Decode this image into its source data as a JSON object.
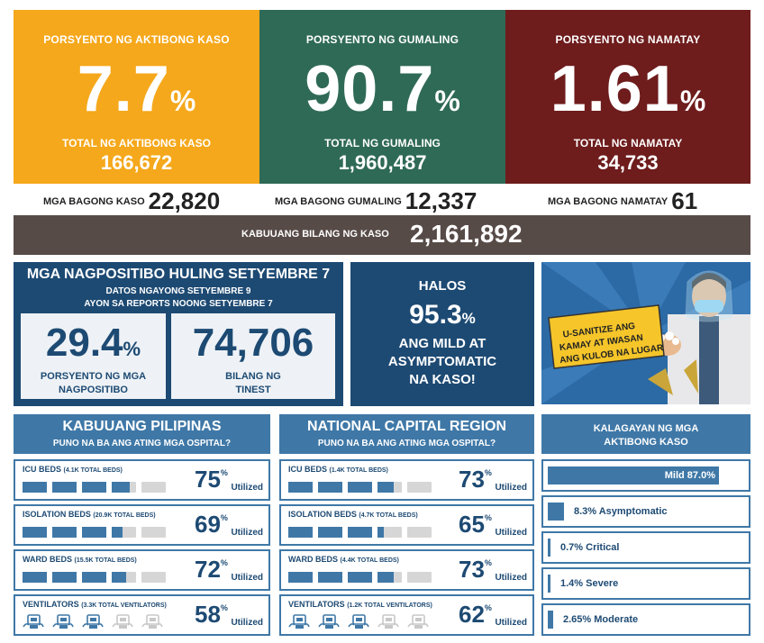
{
  "top_stats": [
    {
      "label": "PORSYENTO NG AKTIBONG KASO",
      "value": "7.7",
      "unit": "%",
      "sub_label": "TOTAL NG AKTIBONG KASO",
      "sub_value": "166,672",
      "color": "#f5a81b"
    },
    {
      "label": "PORSYENTO NG GUMALING",
      "value": "90.7",
      "unit": "%",
      "sub_label": "TOTAL NG GUMALING",
      "sub_value": "1,960,487",
      "color": "#2f6a56"
    },
    {
      "label": "PORSYENTO NG NAMATAY",
      "value": "1.61",
      "unit": "%",
      "sub_label": "TOTAL NG NAMATAY",
      "sub_value": "34,733",
      "color": "#6e1c1c"
    }
  ],
  "new_cases": [
    {
      "label": "MGA BAGONG KASO",
      "value": "22,820"
    },
    {
      "label": "MGA BAGONG GUMALING",
      "value": "12,337"
    },
    {
      "label": "MGA BAGONG NAMATAY",
      "value": "61"
    }
  ],
  "total": {
    "label": "KABUUANG BILANG NG KASO",
    "value": "2,161,892"
  },
  "positivity": {
    "title": "MGA NAGPOSITIBO HULING SETYEMBRE 7",
    "sub1": "DATOS NGAYONG SETYEMBRE 9",
    "sub2": "AYON SA REPORTS NOONG SETYEMBRE 7",
    "rate_value": "29.4",
    "rate_unit": "%",
    "rate_label1": "PORSYENTO NG MGA",
    "rate_label2": "NAGPOSITIBO",
    "tested_value": "74,706",
    "tested_label1": "BILANG NG",
    "tested_label2": "TINEST"
  },
  "mild": {
    "l1": "HALOS",
    "value": "95.3",
    "unit": "%",
    "l2": "ANG MILD AT",
    "l3": "ASYMPTOMATIC",
    "l4": "NA KASO!"
  },
  "poster": {
    "sign": [
      "U-SANITIZE ANG",
      "KAMAY AT IWASAN",
      "ANG KULOB NA LUGAR"
    ]
  },
  "hospitals": [
    {
      "title": "KABUUANG PILIPINAS",
      "subtitle": "PUNO NA BA ANG ATING MGA OSPITAL?",
      "rows": [
        {
          "name": "ICU BEDS",
          "detail": "(4.1K TOTAL BEDS)",
          "value": "75",
          "fraction": 0.75,
          "type": "bed"
        },
        {
          "name": "ISOLATION BEDS",
          "detail": "(20.9K TOTAL BEDS)",
          "value": "69",
          "fraction": 0.69,
          "type": "bed"
        },
        {
          "name": "WARD BEDS",
          "detail": "(15.5K TOTAL BEDS)",
          "value": "72",
          "fraction": 0.72,
          "type": "bed"
        },
        {
          "name": "VENTILATORS",
          "detail": "(3.3K TOTAL VENTILATORS)",
          "value": "58",
          "fraction": 0.58,
          "type": "vent"
        }
      ]
    },
    {
      "title": "NATIONAL CAPITAL REGION",
      "subtitle": "PUNO NA BA ANG ATING MGA OSPITAL?",
      "rows": [
        {
          "name": "ICU BEDS",
          "detail": "(1.4K TOTAL BEDS)",
          "value": "73",
          "fraction": 0.73,
          "type": "bed"
        },
        {
          "name": "ISOLATION BEDS",
          "detail": "(4.7K TOTAL BEDS)",
          "value": "65",
          "fraction": 0.65,
          "type": "bed"
        },
        {
          "name": "WARD BEDS",
          "detail": "(4.4K TOTAL BEDS)",
          "value": "73",
          "fraction": 0.73,
          "type": "bed"
        },
        {
          "name": "VENTILATORS",
          "detail": "(1.2K TOTAL VENTILATORS)",
          "value": "62",
          "fraction": 0.62,
          "type": "vent"
        }
      ]
    }
  ],
  "util_unit": "%",
  "util_label": "Utilized",
  "active_status": {
    "title1": "KALAGAYAN NG MGA",
    "title2": "AKTIBONG KASO",
    "items": [
      {
        "label": "Mild 87.0%",
        "fraction": 0.87
      },
      {
        "label": "8.3% Asymptomatic",
        "fraction": 0.083
      },
      {
        "label": "0.7% Critical",
        "fraction": 0.007
      },
      {
        "label": "1.4% Severe",
        "fraction": 0.014
      },
      {
        "label": "2.65% Moderate",
        "fraction": 0.0265
      }
    ]
  }
}
